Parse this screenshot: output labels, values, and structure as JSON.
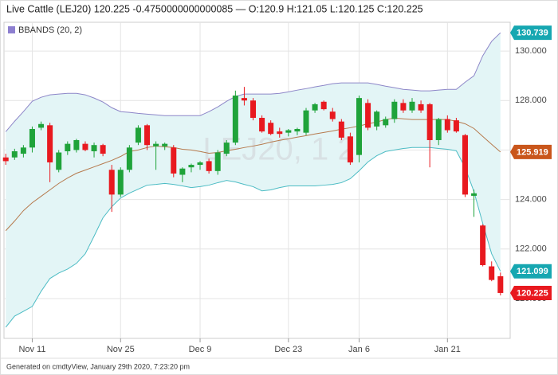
{
  "chart_data": {
    "type": "candlestick",
    "title": "Live Cattle (LEJ20) 120.225 -0.4750000000000085 — O:120.9 H:121.05 L:120.125 C:120.225",
    "legend_label": "BBANDS (20, 2)",
    "legend_color": "#8d7fd0",
    "watermark": "LEJ20, 1 2",
    "footer": "Generated on cmdtyView, January 29th 2020, 7:23:20 pm",
    "grid": true,
    "xlim": [
      -0.2,
      57.1
    ],
    "xticks": [
      {
        "value": 3,
        "label": "Nov 11"
      },
      {
        "value": 13,
        "label": "Nov 25"
      },
      {
        "value": 22,
        "label": "Dec 9"
      },
      {
        "value": 32,
        "label": "Dec 23"
      },
      {
        "value": 40,
        "label": "Jan 6"
      },
      {
        "value": 50,
        "label": "Jan 21"
      }
    ],
    "ylim": [
      118.39,
      131.16
    ],
    "yticks": [
      {
        "value": 120,
        "label": "120.000"
      },
      {
        "value": 122,
        "label": "122.000"
      },
      {
        "value": 124,
        "label": "124.000"
      },
      {
        "value": 126,
        "label": "126.000"
      },
      {
        "value": 128,
        "label": "128.000"
      },
      {
        "value": 130,
        "label": "130.000"
      }
    ],
    "band_fill": "#e3f5f6",
    "candles": {
      "up_color": "#1fa33a",
      "down_color": "#e8191f",
      "open": [
        125.7,
        125.7,
        125.85,
        126.1,
        126.9,
        127.0,
        125.2,
        125.95,
        126.0,
        126.25,
        125.95,
        126.2,
        125.2,
        124.2,
        125.2,
        126.3,
        127.0,
        126.15,
        126.15,
        126.1,
        125.0,
        125.3,
        125.4,
        125.55,
        125.15,
        125.85,
        126.3,
        128.1,
        128.0,
        127.3,
        127.1,
        126.75,
        126.7,
        126.75,
        126.7,
        127.6,
        127.95,
        127.55,
        127.15,
        126.55,
        125.8,
        127.9,
        126.95,
        127.0,
        127.25,
        127.9,
        127.6,
        127.85,
        127.85,
        126.4,
        127.25,
        127.2,
        126.6,
        124.15,
        122.95,
        121.3,
        120.9
      ],
      "high": [
        125.85,
        126.05,
        126.2,
        126.95,
        127.15,
        127.1,
        126.0,
        126.35,
        126.45,
        126.35,
        126.3,
        126.25,
        125.4,
        125.3,
        126.2,
        127.0,
        127.05,
        126.35,
        126.3,
        126.2,
        125.3,
        125.45,
        125.55,
        125.65,
        126.0,
        126.4,
        128.4,
        128.55,
        128.1,
        127.4,
        127.2,
        126.9,
        126.85,
        126.9,
        127.7,
        127.9,
        128.0,
        127.7,
        127.25,
        126.7,
        128.2,
        128.05,
        127.6,
        127.35,
        128.05,
        128.05,
        128.1,
        128.0,
        127.9,
        127.3,
        127.4,
        127.3,
        126.65,
        124.4,
        123.0,
        121.5,
        121.05
      ],
      "low": [
        125.4,
        125.6,
        125.7,
        125.9,
        126.8,
        124.7,
        125.1,
        125.8,
        125.9,
        125.95,
        125.7,
        125.75,
        123.5,
        124.1,
        125.1,
        126.2,
        126.0,
        125.2,
        126.0,
        124.9,
        124.7,
        125.1,
        125.2,
        125.05,
        125.0,
        125.75,
        126.2,
        127.8,
        127.2,
        126.7,
        126.6,
        126.5,
        126.55,
        126.6,
        126.6,
        127.5,
        127.6,
        127.15,
        126.4,
        125.4,
        125.5,
        126.8,
        126.8,
        126.9,
        127.1,
        127.5,
        127.5,
        127.5,
        125.3,
        126.2,
        126.7,
        126.7,
        124.1,
        123.3,
        121.3,
        120.7,
        120.125
      ],
      "close": [
        125.55,
        125.95,
        126.1,
        126.85,
        127.05,
        125.5,
        125.9,
        126.25,
        126.4,
        126.0,
        126.2,
        125.85,
        124.2,
        125.2,
        126.1,
        126.9,
        126.2,
        126.25,
        126.25,
        125.05,
        125.25,
        125.4,
        125.5,
        125.15,
        125.9,
        126.3,
        128.2,
        128.0,
        127.3,
        126.75,
        126.65,
        126.65,
        126.8,
        126.85,
        127.6,
        127.85,
        127.65,
        127.25,
        126.5,
        125.5,
        128.1,
        126.9,
        127.55,
        127.25,
        127.95,
        127.6,
        127.95,
        127.6,
        126.4,
        127.25,
        126.8,
        126.75,
        124.2,
        124.25,
        121.35,
        120.75,
        120.225
      ]
    },
    "series": [
      {
        "color": "#8d86c8",
        "label_color": "#16a7b1",
        "values": [
          126.74,
          127.16,
          127.55,
          127.97,
          128.13,
          128.23,
          128.26,
          128.29,
          128.29,
          128.23,
          128.1,
          127.94,
          127.71,
          127.55,
          127.52,
          127.48,
          127.45,
          127.42,
          127.39,
          127.39,
          127.39,
          127.39,
          127.39,
          127.55,
          127.74,
          127.97,
          128.16,
          128.26,
          128.26,
          128.26,
          128.26,
          128.29,
          128.35,
          128.42,
          128.48,
          128.55,
          128.61,
          128.68,
          128.71,
          128.71,
          128.71,
          128.71,
          128.65,
          128.58,
          128.52,
          128.45,
          128.42,
          128.39,
          128.39,
          128.42,
          128.45,
          128.45,
          128.74,
          129.0,
          129.81,
          130.39,
          130.739
        ]
      },
      {
        "color": "#b67a4e",
        "label_color": "#c9561b",
        "values": [
          122.74,
          123.13,
          123.55,
          123.87,
          124.13,
          124.39,
          124.65,
          124.87,
          125.06,
          125.19,
          125.32,
          125.45,
          125.58,
          125.74,
          125.94,
          126.0,
          126.1,
          126.16,
          126.13,
          126.1,
          126.03,
          126.0,
          125.94,
          125.87,
          125.9,
          125.97,
          126.03,
          126.1,
          126.16,
          126.23,
          126.32,
          126.39,
          126.45,
          126.52,
          126.58,
          126.65,
          126.71,
          126.77,
          126.84,
          126.9,
          126.97,
          127.06,
          127.13,
          127.23,
          127.29,
          127.26,
          127.23,
          127.23,
          127.23,
          127.23,
          127.23,
          127.16,
          127.06,
          126.87,
          126.55,
          126.23,
          125.919
        ]
      },
      {
        "color": "#4cbcc4",
        "label_color": "#16a7b1",
        "values": [
          118.84,
          119.29,
          119.48,
          119.68,
          120.29,
          120.81,
          121.03,
          121.19,
          121.42,
          121.81,
          122.52,
          123.26,
          123.71,
          124.06,
          124.26,
          124.42,
          124.58,
          124.61,
          124.65,
          124.61,
          124.55,
          124.48,
          124.52,
          124.58,
          124.68,
          124.77,
          124.71,
          124.61,
          124.52,
          124.35,
          124.39,
          124.48,
          124.55,
          124.55,
          124.55,
          124.55,
          124.58,
          124.61,
          124.68,
          124.84,
          125.16,
          125.52,
          125.77,
          125.94,
          126.0,
          126.06,
          126.1,
          126.1,
          126.1,
          126.06,
          126.03,
          125.97,
          125.29,
          124.32,
          123.03,
          121.81,
          121.099
        ]
      }
    ]
  }
}
